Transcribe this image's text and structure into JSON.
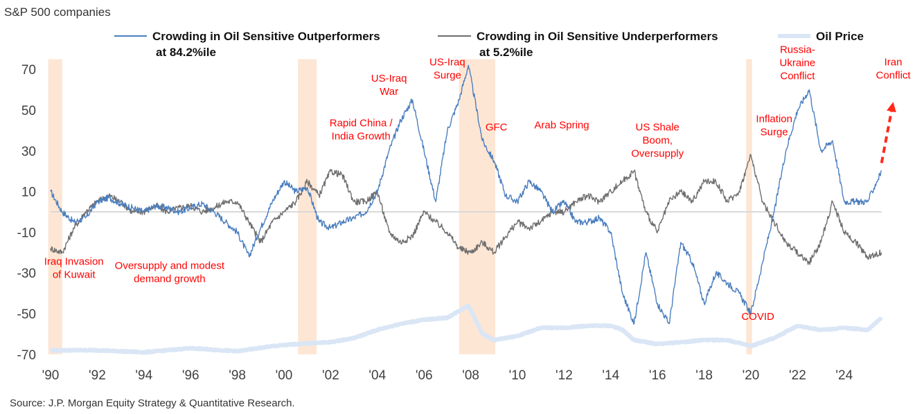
{
  "chart_data": {
    "type": "line",
    "subtitle": "S&P 500 companies",
    "source": "Source: J.P. Morgan Equity Strategy & Quantitative Research.",
    "ylim": [
      -70,
      75
    ],
    "yticks": [
      70,
      50,
      30,
      10,
      -10,
      -30,
      -50,
      -70
    ],
    "xlim": [
      1989.8,
      2026.6
    ],
    "xticks": [
      1990,
      1992,
      1994,
      1996,
      1998,
      2000,
      2002,
      2004,
      2006,
      2008,
      2010,
      2012,
      2014,
      2016,
      2018,
      2020,
      2022,
      2024
    ],
    "xtick_labels": [
      "'90",
      "'92",
      "'94",
      "'96",
      "'98",
      "'00",
      "'02",
      "'04",
      "'06",
      "'08",
      "'10",
      "'12",
      "'14",
      "'16",
      "'18",
      "'20",
      "'22",
      "'24"
    ],
    "zero_line": true,
    "legend": [
      {
        "name": "Crowding in Oil Sensitive Outperformers",
        "note": "at 84.2%ile",
        "color": "#4a7ebf"
      },
      {
        "name": "Crowding in Oil Sensitive Underperformers",
        "note": "at 5.2%ile",
        "color": "#6e6e6e"
      },
      {
        "name": "Oil Price",
        "color": "#dae6f5"
      }
    ],
    "shaded_periods": [
      [
        1989.9,
        1990.5
      ],
      [
        2000.6,
        2001.4
      ],
      [
        2007.5,
        2009.05
      ],
      [
        2019.8,
        2020.05
      ]
    ],
    "shade_color": "#fde6d4",
    "series": [
      {
        "name": "Crowding in Oil Sensitive Outperformers",
        "color": "#4a7ebf",
        "x": [
          1990,
          1990.5,
          1991,
          1991.5,
          1992,
          1992.5,
          1993,
          1993.5,
          1994,
          1994.5,
          1995,
          1995.5,
          1996,
          1996.5,
          1997,
          1997.5,
          1998,
          1998.5,
          1999,
          1999.5,
          2000,
          2000.5,
          2001,
          2001.5,
          2002,
          2002.5,
          2003,
          2003.5,
          2004,
          2004.5,
          2005,
          2005.5,
          2006,
          2006.5,
          2007,
          2007.5,
          2007.9,
          2008.5,
          2009,
          2009.5,
          2010,
          2010.5,
          2011,
          2011.5,
          2012,
          2012.5,
          2013,
          2013.5,
          2014,
          2014.5,
          2015,
          2015.5,
          2016,
          2016.5,
          2017,
          2017.5,
          2018,
          2018.5,
          2019,
          2019.5,
          2020,
          2020.5,
          2021,
          2021.5,
          2022,
          2022.5,
          2023,
          2023.5,
          2024,
          2024.5,
          2025,
          2025.6
        ],
        "values": [
          10,
          0,
          -5,
          -3,
          5,
          7,
          4,
          2,
          0,
          3,
          2,
          0,
          2,
          4,
          0,
          -5,
          -10,
          -22,
          -8,
          5,
          15,
          10,
          12,
          -5,
          -8,
          -5,
          -3,
          0,
          10,
          30,
          45,
          55,
          30,
          5,
          40,
          55,
          72,
          35,
          25,
          8,
          5,
          15,
          10,
          0,
          5,
          -5,
          -5,
          -3,
          -10,
          -40,
          -55,
          -20,
          -45,
          -55,
          -15,
          -25,
          -45,
          -30,
          -35,
          -40,
          -50,
          -25,
          0,
          30,
          50,
          60,
          30,
          35,
          5,
          5,
          5,
          20
        ]
      },
      {
        "name": "Crowding in Oil Sensitive Underperformers",
        "color": "#6e6e6e",
        "x": [
          1990,
          1990.5,
          1991,
          1991.5,
          1992,
          1992.5,
          1993,
          1993.5,
          1994,
          1994.5,
          1995,
          1995.5,
          1996,
          1996.5,
          1997,
          1997.5,
          1998,
          1998.5,
          1999,
          1999.5,
          2000,
          2000.5,
          2001,
          2001.5,
          2002,
          2002.5,
          2003,
          2003.5,
          2004,
          2004.5,
          2005,
          2005.5,
          2006,
          2006.5,
          2007,
          2007.5,
          2008,
          2008.5,
          2009,
          2009.5,
          2010,
          2010.5,
          2011,
          2011.5,
          2012,
          2012.5,
          2013,
          2013.5,
          2014,
          2014.5,
          2015,
          2015.5,
          2016,
          2016.5,
          2017,
          2017.5,
          2018,
          2018.5,
          2019,
          2019.5,
          2020,
          2020.5,
          2021,
          2021.5,
          2022,
          2022.5,
          2023,
          2023.5,
          2024,
          2024.5,
          2025,
          2025.6
        ],
        "values": [
          -18,
          -20,
          -8,
          0,
          5,
          8,
          5,
          0,
          0,
          3,
          0,
          2,
          3,
          0,
          2,
          5,
          5,
          -5,
          -15,
          -5,
          0,
          5,
          15,
          8,
          20,
          18,
          5,
          5,
          10,
          -10,
          -15,
          -12,
          0,
          -5,
          -10,
          -18,
          -20,
          -15,
          -20,
          -12,
          -5,
          -8,
          -5,
          0,
          0,
          5,
          8,
          5,
          10,
          15,
          20,
          0,
          -10,
          5,
          10,
          5,
          15,
          15,
          5,
          10,
          28,
          5,
          -5,
          -15,
          -20,
          -25,
          -15,
          5,
          -10,
          -15,
          -22,
          -20
        ]
      },
      {
        "name": "Oil Price",
        "color": "#dae6f5",
        "x": [
          1990,
          1992,
          1994,
          1996,
          1998,
          1999.5,
          2000.5,
          2002,
          2003,
          2004,
          2005,
          2006,
          2007,
          2007.9,
          2008.5,
          2009,
          2010,
          2011,
          2012,
          2013,
          2014,
          2014.5,
          2015,
          2016,
          2017,
          2018,
          2019,
          2020,
          2021,
          2022,
          2023,
          2024,
          2025,
          2025.6
        ],
        "values": [
          -68,
          -68,
          -69,
          -67,
          -68.5,
          -66,
          -65,
          -64,
          -62,
          -58,
          -55,
          -53,
          -52,
          -46,
          -60,
          -63,
          -61,
          -57,
          -57,
          -56,
          -56,
          -58,
          -63,
          -65,
          -64,
          -63,
          -63,
          -66,
          -62,
          -56,
          -58,
          -57,
          -58,
          -52
        ]
      }
    ],
    "annotations": [
      {
        "lines": [
          "Iraq Invasion",
          "of Kuwait"
        ],
        "x": 1991,
        "y": -26
      },
      {
        "lines": [
          "Oversupply and modest",
          "demand growth"
        ],
        "x": 1995.1,
        "y": -28
      },
      {
        "lines": [
          "Rapid China /",
          "India Growth"
        ],
        "x": 2003.3,
        "y": 42
      },
      {
        "lines": [
          "US-Iraq",
          "War"
        ],
        "x": 2004.5,
        "y": 64
      },
      {
        "lines": [
          "US-Iraq",
          "Surge"
        ],
        "x": 2007,
        "y": 72
      },
      {
        "lines": [
          "GFC"
        ],
        "x": 2009.1,
        "y": 40
      },
      {
        "lines": [
          "Arab Spring"
        ],
        "x": 2011.9,
        "y": 41
      },
      {
        "lines": [
          "US Shale",
          "Boom,",
          "Oversupply"
        ],
        "x": 2016,
        "y": 40
      },
      {
        "lines": [
          "COVID"
        ],
        "x": 2020.3,
        "y": -53
      },
      {
        "lines": [
          "Inflation",
          "Surge"
        ],
        "x": 2021,
        "y": 44
      },
      {
        "lines": [
          "Russia-",
          "Ukraine",
          "Conflict"
        ],
        "x": 2022,
        "y": 78
      },
      {
        "lines": [
          "Iran",
          "Conflict"
        ],
        "x": 2026.1,
        "y": 72
      }
    ],
    "arrow": {
      "from": [
        2025.6,
        24
      ],
      "to": [
        2026.1,
        54
      ],
      "color": "#ff2a1a"
    }
  }
}
